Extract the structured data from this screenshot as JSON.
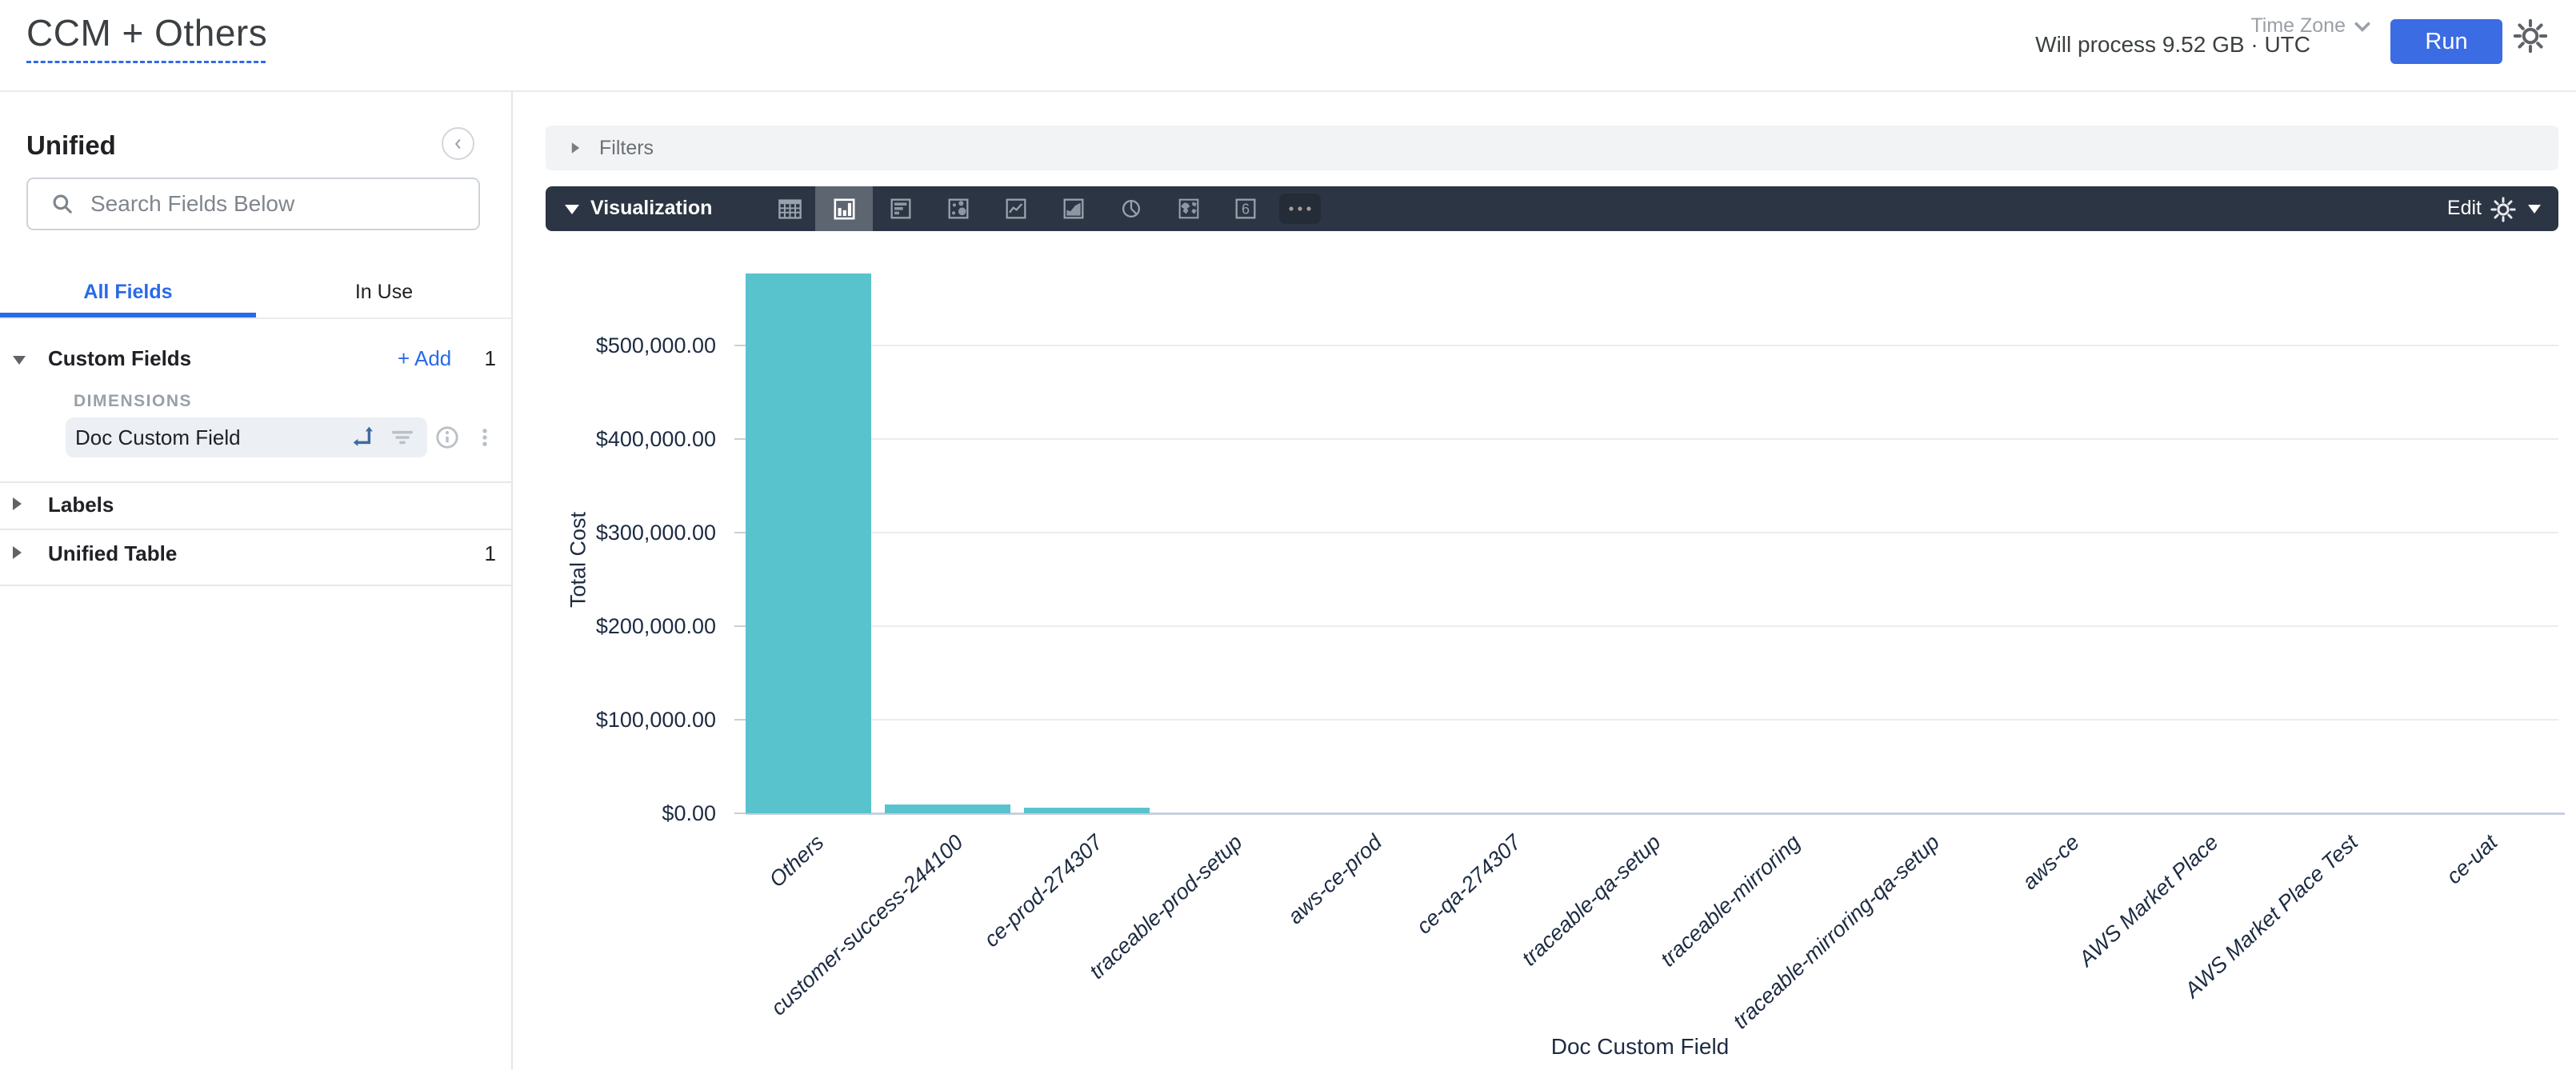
{
  "header": {
    "title": "CCM + Others",
    "process_info": "Will process 9.52 GB · UTC",
    "time_zone_label": "Time Zone",
    "run_label": "Run"
  },
  "sidebar": {
    "title": "Unified",
    "search_placeholder": "Search Fields Below",
    "tabs": [
      {
        "label": "All Fields",
        "active": true
      },
      {
        "label": "In Use",
        "active": false
      }
    ],
    "custom_fields": {
      "label": "Custom Fields",
      "add_label": "Add",
      "count": "1",
      "group_label": "DIMENSIONS",
      "field_name": "Doc Custom Field"
    },
    "labels_section": {
      "label": "Labels"
    },
    "unified_table_section": {
      "label": "Unified Table",
      "count": "1"
    }
  },
  "filters": {
    "label": "Filters"
  },
  "visualization": {
    "label": "Visualization",
    "edit_label": "Edit",
    "tools": [
      {
        "name": "table-icon",
        "selected": false
      },
      {
        "name": "bar-chart-icon",
        "selected": true
      },
      {
        "name": "horizontal-bars-icon",
        "selected": false
      },
      {
        "name": "scatter-icon",
        "selected": false
      },
      {
        "name": "line-chart-icon",
        "selected": false
      },
      {
        "name": "area-chart-icon",
        "selected": false
      },
      {
        "name": "donut-chart-icon",
        "selected": false
      },
      {
        "name": "map-icon",
        "selected": false
      },
      {
        "name": "single-value-icon",
        "selected": false
      },
      {
        "name": "more-icon",
        "selected": false
      }
    ]
  },
  "colors": {
    "accent_blue": "#2a6ae8",
    "run_button_blue": "#3b6ce4",
    "toolbar_dark": "#2c3543",
    "bar_teal": "#58c3cd"
  },
  "chart_data": {
    "type": "bar",
    "title": "",
    "xlabel": "Doc Custom Field",
    "ylabel": "Total Cost",
    "categories": [
      "Others",
      "customer-success-244100",
      "ce-prod-274307",
      "traceable-prod-setup",
      "aws-ce-prod",
      "ce-qa-274307",
      "traceable-qa-setup",
      "traceable-mirroring",
      "traceable-mirroring-qa-setup",
      "aws-ce",
      "AWS Market Place",
      "AWS Market Place Test",
      "ce-uat"
    ],
    "values": [
      577000,
      9400,
      5600,
      0,
      0,
      0,
      0,
      0,
      0,
      0,
      0,
      0,
      0
    ],
    "y_ticks": [
      {
        "label": "$0.00",
        "value": 0
      },
      {
        "label": "$100,000.00",
        "value": 100000
      },
      {
        "label": "$200,000.00",
        "value": 200000
      },
      {
        "label": "$300,000.00",
        "value": 300000
      },
      {
        "label": "$400,000.00",
        "value": 400000
      },
      {
        "label": "$500,000.00",
        "value": 500000
      }
    ],
    "ylim": [
      0,
      500000
    ],
    "grid": true,
    "legend": false,
    "x_label_rotation": -43
  }
}
